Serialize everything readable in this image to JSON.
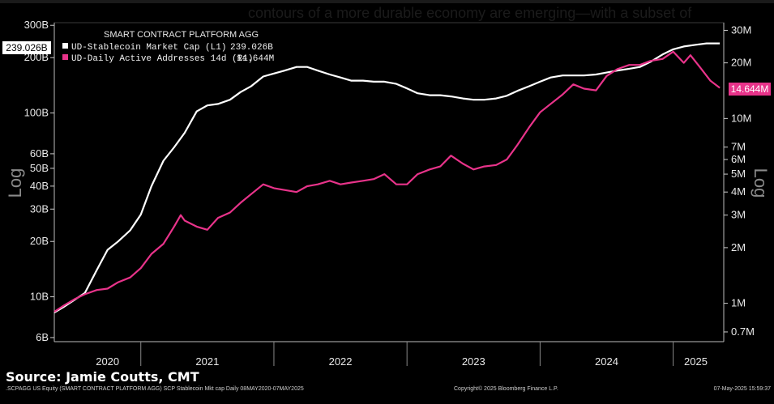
{
  "overlay_text": "contours of a more durable economy are emerging—with a subset of",
  "source": "Source: Jamie Coutts, CMT",
  "footer": {
    "left": ".SCPAGG US Equity (SMART CONTRACT PLATFORM AGG) SCP Stablecoin Mkt cap  Daily 08MAY2020-07MAY2025",
    "middle": "Copyright© 2025 Bloomberg Finance L.P.",
    "right": "07-May-2025 15:59:37"
  },
  "colors": {
    "background": "#000000",
    "series_l1": "#ffffff",
    "series_r1": "#e8338a",
    "grid": "#2a2a2a"
  },
  "chart_data": {
    "type": "line",
    "legend": {
      "title": "SMART CONTRACT PLATFORM AGG",
      "placement": "top-left",
      "entries": [
        {
          "label": "UD-Stablecoin Market Cap  (L1)",
          "value": "239.026B"
        },
        {
          "label": "UD-Daily Active Addresses 14d  (R1)",
          "value": "14.644M"
        }
      ]
    },
    "left_axis": {
      "scale": "log",
      "label": "Log",
      "ylim_billions": [
        5.7,
        310
      ],
      "ticks": [
        "300B",
        "200B",
        "100B",
        "60B",
        "50B",
        "40B",
        "30B",
        "20B",
        "10B",
        "6B"
      ],
      "tick_values": [
        300,
        200,
        100,
        60,
        50,
        40,
        30,
        20,
        10,
        6
      ]
    },
    "right_axis": {
      "scale": "log",
      "label": "Log",
      "ylim_millions": [
        0.62,
        33
      ],
      "ticks": [
        "30M",
        "20M",
        "10M",
        "7M",
        "6M",
        "5M",
        "4M",
        "3M",
        "2M",
        "1M",
        "0.7M"
      ],
      "tick_values": [
        30,
        20,
        10,
        7,
        6,
        5,
        4,
        3,
        2,
        1,
        0.7
      ]
    },
    "x_axis": {
      "ticks": [
        "2020",
        "2021",
        "2022",
        "2023",
        "2024",
        "2025"
      ],
      "tick_years": [
        2020.75,
        2021.5,
        2022.5,
        2023.5,
        2024.5,
        2025.17
      ],
      "boundaries": [
        2021,
        2022,
        2023,
        2024,
        2025
      ],
      "xlim": [
        2020.35,
        2025.38
      ]
    },
    "last_value_badges": {
      "left": "239.026B",
      "right": "14.644M"
    },
    "series": [
      {
        "name": "UD-Stablecoin Market Cap  (L1)",
        "axis": "left",
        "unit": "B",
        "points": [
          [
            2020.35,
            8.2
          ],
          [
            2020.42,
            8.8
          ],
          [
            2020.5,
            9.6
          ],
          [
            2020.58,
            10.5
          ],
          [
            2020.67,
            14
          ],
          [
            2020.75,
            18
          ],
          [
            2020.83,
            20
          ],
          [
            2020.92,
            23
          ],
          [
            2021.0,
            28
          ],
          [
            2021.08,
            40
          ],
          [
            2021.17,
            55
          ],
          [
            2021.25,
            65
          ],
          [
            2021.33,
            78
          ],
          [
            2021.42,
            102
          ],
          [
            2021.5,
            110
          ],
          [
            2021.58,
            112
          ],
          [
            2021.67,
            118
          ],
          [
            2021.75,
            130
          ],
          [
            2021.83,
            140
          ],
          [
            2021.92,
            158
          ],
          [
            2022.0,
            164
          ],
          [
            2022.08,
            170
          ],
          [
            2022.17,
            178
          ],
          [
            2022.25,
            178
          ],
          [
            2022.33,
            170
          ],
          [
            2022.42,
            162
          ],
          [
            2022.5,
            156
          ],
          [
            2022.58,
            150
          ],
          [
            2022.67,
            150
          ],
          [
            2022.75,
            148
          ],
          [
            2022.83,
            148
          ],
          [
            2022.92,
            144
          ],
          [
            2023.0,
            136
          ],
          [
            2023.08,
            128
          ],
          [
            2023.17,
            125
          ],
          [
            2023.25,
            125
          ],
          [
            2023.33,
            123
          ],
          [
            2023.42,
            120
          ],
          [
            2023.5,
            118
          ],
          [
            2023.58,
            118
          ],
          [
            2023.67,
            120
          ],
          [
            2023.75,
            124
          ],
          [
            2023.83,
            132
          ],
          [
            2023.92,
            140
          ],
          [
            2024.0,
            148
          ],
          [
            2024.08,
            156
          ],
          [
            2024.17,
            160
          ],
          [
            2024.25,
            160
          ],
          [
            2024.33,
            160
          ],
          [
            2024.42,
            162
          ],
          [
            2024.5,
            166
          ],
          [
            2024.58,
            170
          ],
          [
            2024.67,
            174
          ],
          [
            2024.75,
            178
          ],
          [
            2024.83,
            190
          ],
          [
            2024.92,
            208
          ],
          [
            2025.0,
            222
          ],
          [
            2025.08,
            230
          ],
          [
            2025.17,
            235
          ],
          [
            2025.25,
            239
          ],
          [
            2025.35,
            239.026
          ]
        ]
      },
      {
        "name": "UD-Daily Active Addresses 14d  (R1)",
        "axis": "right",
        "unit": "M",
        "points": [
          [
            2020.35,
            0.9
          ],
          [
            2020.42,
            0.97
          ],
          [
            2020.5,
            1.05
          ],
          [
            2020.58,
            1.12
          ],
          [
            2020.67,
            1.18
          ],
          [
            2020.75,
            1.2
          ],
          [
            2020.83,
            1.3
          ],
          [
            2020.92,
            1.38
          ],
          [
            2021.0,
            1.55
          ],
          [
            2021.08,
            1.85
          ],
          [
            2021.17,
            2.1
          ],
          [
            2021.25,
            2.6
          ],
          [
            2021.3,
            3.0
          ],
          [
            2021.33,
            2.8
          ],
          [
            2021.42,
            2.6
          ],
          [
            2021.5,
            2.5
          ],
          [
            2021.58,
            2.9
          ],
          [
            2021.67,
            3.1
          ],
          [
            2021.75,
            3.5
          ],
          [
            2021.83,
            3.9
          ],
          [
            2021.92,
            4.4
          ],
          [
            2022.0,
            4.2
          ],
          [
            2022.08,
            4.1
          ],
          [
            2022.17,
            4.0
          ],
          [
            2022.25,
            4.3
          ],
          [
            2022.33,
            4.4
          ],
          [
            2022.42,
            4.6
          ],
          [
            2022.5,
            4.4
          ],
          [
            2022.58,
            4.5
          ],
          [
            2022.67,
            4.6
          ],
          [
            2022.75,
            4.7
          ],
          [
            2022.83,
            5.0
          ],
          [
            2022.92,
            4.4
          ],
          [
            2023.0,
            4.4
          ],
          [
            2023.08,
            5.0
          ],
          [
            2023.17,
            5.3
          ],
          [
            2023.25,
            5.5
          ],
          [
            2023.33,
            6.3
          ],
          [
            2023.42,
            5.7
          ],
          [
            2023.5,
            5.3
          ],
          [
            2023.58,
            5.5
          ],
          [
            2023.67,
            5.6
          ],
          [
            2023.75,
            6.0
          ],
          [
            2023.83,
            7.2
          ],
          [
            2023.92,
            9.0
          ],
          [
            2024.0,
            10.8
          ],
          [
            2024.08,
            12.0
          ],
          [
            2024.17,
            13.5
          ],
          [
            2024.25,
            15.3
          ],
          [
            2024.33,
            14.5
          ],
          [
            2024.42,
            14.2
          ],
          [
            2024.5,
            17.0
          ],
          [
            2024.58,
            18.5
          ],
          [
            2024.67,
            19.5
          ],
          [
            2024.75,
            19.5
          ],
          [
            2024.83,
            20.5
          ],
          [
            2024.92,
            21.0
          ],
          [
            2025.0,
            23.0
          ],
          [
            2025.08,
            20.0
          ],
          [
            2025.13,
            22.0
          ],
          [
            2025.2,
            19.0
          ],
          [
            2025.28,
            16.0
          ],
          [
            2025.35,
            14.644
          ]
        ]
      }
    ]
  }
}
